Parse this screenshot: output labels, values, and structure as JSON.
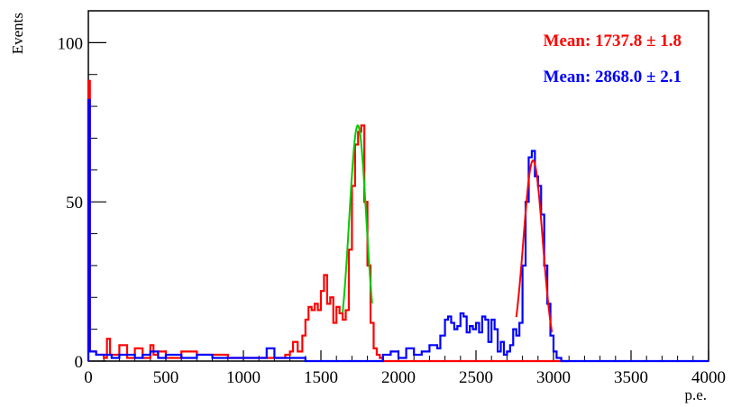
{
  "chart_data": {
    "type": "line",
    "title": "",
    "xlabel": "p.e.",
    "ylabel": "Events",
    "xlim": [
      0,
      4000
    ],
    "ylim": [
      0,
      110
    ],
    "x_ticks": [
      "0",
      "500",
      "1000",
      "1500",
      "2000",
      "2500",
      "3000",
      "3500",
      "4000"
    ],
    "y_ticks": [
      "0",
      "50",
      "100"
    ],
    "grid": false,
    "series": [
      {
        "color": "#ff0000",
        "style": "step",
        "points": [
          [
            0,
            88
          ],
          [
            10,
            3
          ],
          [
            50,
            2
          ],
          [
            100,
            1
          ],
          [
            120,
            7
          ],
          [
            140,
            2
          ],
          [
            200,
            5
          ],
          [
            250,
            1
          ],
          [
            300,
            4
          ],
          [
            350,
            1
          ],
          [
            400,
            5
          ],
          [
            420,
            2
          ],
          [
            450,
            3
          ],
          [
            500,
            1
          ],
          [
            600,
            3
          ],
          [
            700,
            2
          ],
          [
            800,
            2
          ],
          [
            900,
            1
          ],
          [
            1000,
            1
          ],
          [
            1100,
            1
          ],
          [
            1200,
            1
          ],
          [
            1270,
            2
          ],
          [
            1300,
            3
          ],
          [
            1320,
            6
          ],
          [
            1350,
            3
          ],
          [
            1380,
            8
          ],
          [
            1400,
            13
          ],
          [
            1420,
            17
          ],
          [
            1440,
            16
          ],
          [
            1460,
            18
          ],
          [
            1480,
            16
          ],
          [
            1500,
            22
          ],
          [
            1520,
            27
          ],
          [
            1540,
            18
          ],
          [
            1560,
            20
          ],
          [
            1580,
            12
          ],
          [
            1600,
            17
          ],
          [
            1620,
            15
          ],
          [
            1640,
            13
          ],
          [
            1660,
            16
          ],
          [
            1680,
            35
          ],
          [
            1700,
            55
          ],
          [
            1720,
            68
          ],
          [
            1740,
            72
          ],
          [
            1760,
            74
          ],
          [
            1780,
            50
          ],
          [
            1800,
            30
          ],
          [
            1820,
            12
          ],
          [
            1840,
            4
          ],
          [
            1860,
            2
          ],
          [
            1880,
            1
          ],
          [
            1900,
            0
          ],
          [
            2000,
            0
          ],
          [
            2100,
            0
          ],
          [
            2200,
            0
          ],
          [
            2300,
            0
          ],
          [
            2400,
            0
          ],
          [
            2500,
            0
          ],
          [
            2600,
            0
          ],
          [
            2700,
            0
          ],
          [
            2800,
            0
          ],
          [
            2900,
            0
          ],
          [
            3000,
            0
          ],
          [
            3100,
            0
          ]
        ]
      },
      {
        "color": "#0000ff",
        "style": "step",
        "points": [
          [
            0,
            82
          ],
          [
            10,
            3
          ],
          [
            50,
            2
          ],
          [
            100,
            2
          ],
          [
            150,
            1
          ],
          [
            200,
            2
          ],
          [
            300,
            1
          ],
          [
            350,
            2
          ],
          [
            400,
            3
          ],
          [
            450,
            1
          ],
          [
            500,
            2
          ],
          [
            600,
            1
          ],
          [
            700,
            2
          ],
          [
            800,
            1
          ],
          [
            900,
            1
          ],
          [
            1000,
            1
          ],
          [
            1100,
            1
          ],
          [
            1150,
            4
          ],
          [
            1200,
            1
          ],
          [
            1300,
            1
          ],
          [
            1400,
            0
          ],
          [
            1500,
            0
          ],
          [
            1600,
            0
          ],
          [
            1700,
            0
          ],
          [
            1800,
            0
          ],
          [
            1900,
            2
          ],
          [
            1950,
            3
          ],
          [
            2000,
            1
          ],
          [
            2050,
            4
          ],
          [
            2100,
            2
          ],
          [
            2150,
            3
          ],
          [
            2200,
            5
          ],
          [
            2250,
            4
          ],
          [
            2270,
            8
          ],
          [
            2300,
            13
          ],
          [
            2320,
            14
          ],
          [
            2340,
            12
          ],
          [
            2360,
            10
          ],
          [
            2380,
            11
          ],
          [
            2400,
            15
          ],
          [
            2420,
            14
          ],
          [
            2440,
            9
          ],
          [
            2460,
            11
          ],
          [
            2480,
            10
          ],
          [
            2500,
            12
          ],
          [
            2520,
            9
          ],
          [
            2540,
            14
          ],
          [
            2560,
            13
          ],
          [
            2580,
            6
          ],
          [
            2600,
            13
          ],
          [
            2620,
            10
          ],
          [
            2640,
            3
          ],
          [
            2660,
            6
          ],
          [
            2680,
            2
          ],
          [
            2700,
            3
          ],
          [
            2720,
            5
          ],
          [
            2740,
            10
          ],
          [
            2760,
            8
          ],
          [
            2780,
            12
          ],
          [
            2800,
            30
          ],
          [
            2820,
            50
          ],
          [
            2840,
            64
          ],
          [
            2860,
            66
          ],
          [
            2880,
            58
          ],
          [
            2900,
            55
          ],
          [
            2920,
            46
          ],
          [
            2940,
            30
          ],
          [
            2960,
            18
          ],
          [
            2980,
            8
          ],
          [
            3000,
            3
          ],
          [
            3020,
            1
          ],
          [
            3050,
            0
          ],
          [
            3100,
            0
          ],
          [
            3500,
            0
          ],
          [
            4000,
            0
          ]
        ]
      },
      {
        "color": "#00cc00",
        "style": "gaussian-fit",
        "mean": 1737.8,
        "sigma": 55,
        "amplitude": 74,
        "range": [
          1640,
          1830
        ]
      },
      {
        "color": "#ff0000",
        "style": "gaussian-fit",
        "mean": 2868.0,
        "sigma": 62,
        "amplitude": 63,
        "range": [
          2760,
          2990
        ]
      }
    ],
    "annotations": [
      {
        "text": "Mean: 1737.8 ± 1.8",
        "color": "#ff0000"
      },
      {
        "text": "Mean: 2868.0 ± 2.1",
        "color": "#0000ff"
      }
    ]
  }
}
